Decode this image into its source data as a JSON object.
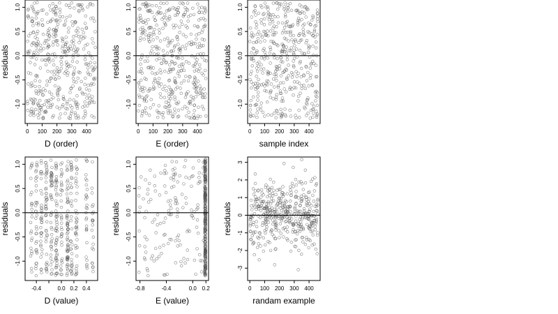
{
  "chart_data": [
    {
      "type": "scatter",
      "xlabel": "D (order)",
      "ylabel": "residuals",
      "xlim": [
        -15,
        475
      ],
      "ylim": [
        -1.4,
        1.15
      ],
      "xticks": [
        0,
        100,
        200,
        300,
        400
      ],
      "xtick_labels": [
        "0",
        "100",
        "200",
        "300",
        "400"
      ],
      "yticks": [
        -1.0,
        -0.5,
        0.0,
        0.5,
        1.0
      ],
      "ytick_labels": [
        "-1.0",
        "-0.5",
        "0.0",
        "0.5",
        "1.0"
      ],
      "hline": 0,
      "points": {
        "generator": "uniform-x",
        "n": 450,
        "x_range": [
          0,
          460
        ],
        "y_dist": "uniform",
        "y_range": [
          -1.3,
          1.1
        ],
        "seed": 11
      }
    },
    {
      "type": "scatter",
      "xlabel": "E (order)",
      "ylabel": "residuals",
      "xlim": [
        -15,
        475
      ],
      "ylim": [
        -1.4,
        1.15
      ],
      "xticks": [
        0,
        100,
        200,
        300,
        400
      ],
      "xtick_labels": [
        "0",
        "100",
        "200",
        "300",
        "400"
      ],
      "yticks": [
        -1.0,
        -0.5,
        0.0,
        0.5,
        1.0
      ],
      "ytick_labels": [
        "-1.0",
        "-0.5",
        "0.0",
        "0.5",
        "1.0"
      ],
      "hline": 0,
      "points": {
        "generator": "uniform-x",
        "n": 450,
        "x_range": [
          0,
          460
        ],
        "y_dist": "uniform",
        "y_range": [
          -1.3,
          1.1
        ],
        "seed": 23
      }
    },
    {
      "type": "scatter",
      "xlabel": "sample index",
      "ylabel": "residuals",
      "xlim": [
        -15,
        475
      ],
      "ylim": [
        -1.4,
        1.15
      ],
      "xticks": [
        0,
        100,
        200,
        300,
        400
      ],
      "xtick_labels": [
        "0",
        "100",
        "200",
        "300",
        "400"
      ],
      "yticks": [
        -1.0,
        -0.5,
        0.0,
        0.5,
        1.0
      ],
      "ytick_labels": [
        "-1.0",
        "-0.5",
        "0.0",
        "0.5",
        "1.0"
      ],
      "hline": 0,
      "points": {
        "generator": "uniform-x",
        "n": 450,
        "x_range": [
          0,
          460
        ],
        "y_dist": "uniform",
        "y_range": [
          -1.3,
          1.1
        ],
        "seed": 37
      }
    },
    {
      "type": "scatter",
      "xlabel": "D (value)",
      "ylabel": "residuals",
      "xlim": [
        -0.58,
        0.58
      ],
      "ylim": [
        -1.4,
        1.15
      ],
      "xticks": [
        -0.4,
        -0.2,
        0.0,
        0.2,
        0.4
      ],
      "xtick_labels": [
        "-0.4",
        "",
        "0.0",
        "0.2",
        "0.4"
      ],
      "yticks": [
        -1.0,
        -0.5,
        0.0,
        0.5,
        1.0
      ],
      "ytick_labels": [
        "-1.0",
        "-0.5",
        "0.0",
        "0.5",
        "1.0"
      ],
      "hline": 0,
      "points": {
        "generator": "columns",
        "n": 450,
        "columns": [
          -0.48,
          -0.4,
          -0.32,
          -0.24,
          -0.16,
          -0.08,
          0.0,
          0.1,
          0.16,
          0.24,
          0.4,
          0.5
        ],
        "weights": [
          2,
          3,
          3,
          5,
          4,
          5,
          4,
          6,
          3,
          3,
          3,
          2
        ],
        "x_jitter": 0.012,
        "y_dist": "uniform",
        "y_range": [
          -1.3,
          1.1
        ],
        "seed": 51
      }
    },
    {
      "type": "scatter",
      "xlabel": "E (value)",
      "ylabel": "residuals",
      "xlim": [
        -0.86,
        0.24
      ],
      "ylim": [
        -1.4,
        1.15
      ],
      "xticks": [
        -0.8,
        -0.4,
        0.0,
        0.2
      ],
      "xtick_labels": [
        "-0.8",
        "-0.4",
        "0.0",
        "0.2"
      ],
      "yticks": [
        -1.0,
        -0.5,
        0.0,
        0.5,
        1.0
      ],
      "ytick_labels": [
        "-1.0",
        "-0.5",
        "0.0",
        "0.5",
        "1.0"
      ],
      "hline": 0,
      "points": {
        "generator": "mixture",
        "n": 450,
        "spread_fraction": 0.3,
        "x_range": [
          -0.82,
          0.18
        ],
        "column_x": 0.19,
        "x_jitter": 0.006,
        "y_dist": "uniform",
        "y_range": [
          -1.3,
          1.1
        ],
        "seed": 67
      }
    },
    {
      "type": "scatter",
      "xlabel": "randam example",
      "ylabel": "residuals",
      "xlim": [
        -15,
        475
      ],
      "ylim": [
        -3.7,
        3.3
      ],
      "xticks": [
        0,
        100,
        200,
        300,
        400
      ],
      "xtick_labels": [
        "0",
        "100",
        "200",
        "300",
        "400"
      ],
      "yticks": [
        -3,
        -2,
        -1,
        0,
        1,
        2,
        3
      ],
      "ytick_labels": [
        "-3",
        "-2",
        "-1",
        "0",
        "1",
        "2",
        "3"
      ],
      "hline": 0,
      "points": {
        "generator": "uniform-x",
        "n": 450,
        "x_range": [
          0,
          460
        ],
        "y_dist": "normal",
        "y_sd": 1.0,
        "seed": 79
      }
    }
  ]
}
